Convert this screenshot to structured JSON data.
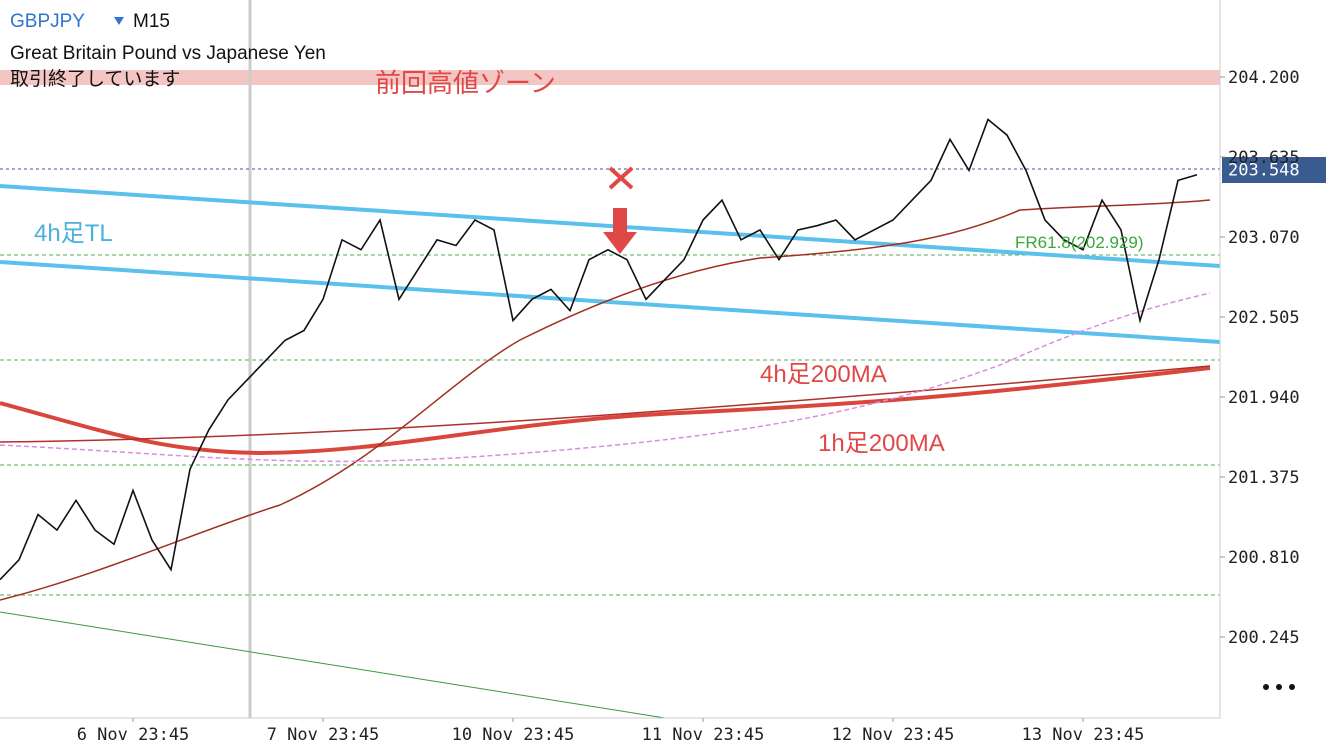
{
  "chart_data": {
    "type": "line",
    "symbol": "GBPJPY",
    "timeframe": "M15",
    "title": "Great Britain Pound vs Japanese Yen",
    "subtitle": "取引終了しています",
    "annotations": [
      "前回高値ゾーン",
      "4h足TL",
      "4h足200MA",
      "1h足200MA",
      "FR61.8(202.929)"
    ],
    "categories": [
      null,
      null,
      null,
      null,
      null,
      null,
      null,
      "6 Nov 23:45",
      null,
      null,
      null,
      null,
      null,
      null,
      null,
      null,
      null,
      "7 Nov 23:45",
      null,
      null,
      null,
      null,
      null,
      null,
      null,
      null,
      null,
      "10 Nov 23:45",
      null,
      null,
      null,
      null,
      null,
      null,
      null,
      null,
      null,
      "11 Nov 23:45",
      null,
      null,
      null,
      null,
      null,
      null,
      null,
      null,
      null,
      "12 Nov 23:45",
      null,
      null,
      null,
      null,
      null,
      null,
      null,
      null,
      null,
      "13 Nov 23:45",
      null,
      null,
      null,
      null,
      null,
      null
    ],
    "series": [
      {
        "color": "#111111",
        "values": [
          200.65,
          200.79,
          201.11,
          201.0,
          201.21,
          201.0,
          200.9,
          201.28,
          200.93,
          200.72,
          201.43,
          201.71,
          201.92,
          202.06,
          202.2,
          202.34,
          202.41,
          202.63,
          203.05,
          202.98,
          203.19,
          202.63,
          202.84,
          203.05,
          203.01,
          203.19,
          203.12,
          202.48,
          202.63,
          202.7,
          202.55,
          202.91,
          202.98,
          202.91,
          202.63,
          202.77,
          202.91,
          203.19,
          203.33,
          203.05,
          203.12,
          202.91,
          203.12,
          203.15,
          203.19,
          203.05,
          203.12,
          203.19,
          203.33,
          203.47,
          203.76,
          203.54,
          203.9,
          203.79,
          203.54,
          203.19,
          203.05,
          202.98,
          203.33,
          203.12,
          202.48,
          202.91,
          203.47,
          203.51
        ]
      }
    ],
    "last_price": 203.548,
    "ylim": [
      199.694,
      204.744
    ],
    "yticks": [
      {
        "value": 204.2,
        "label": "204.200"
      },
      203.635,
      {
        "value": 203.07,
        "label": "203.070"
      },
      202.505,
      {
        "value": 201.94,
        "label": "201.940"
      },
      201.375,
      {
        "value": 200.81,
        "label": "200.810"
      },
      200.245
    ]
  }
}
